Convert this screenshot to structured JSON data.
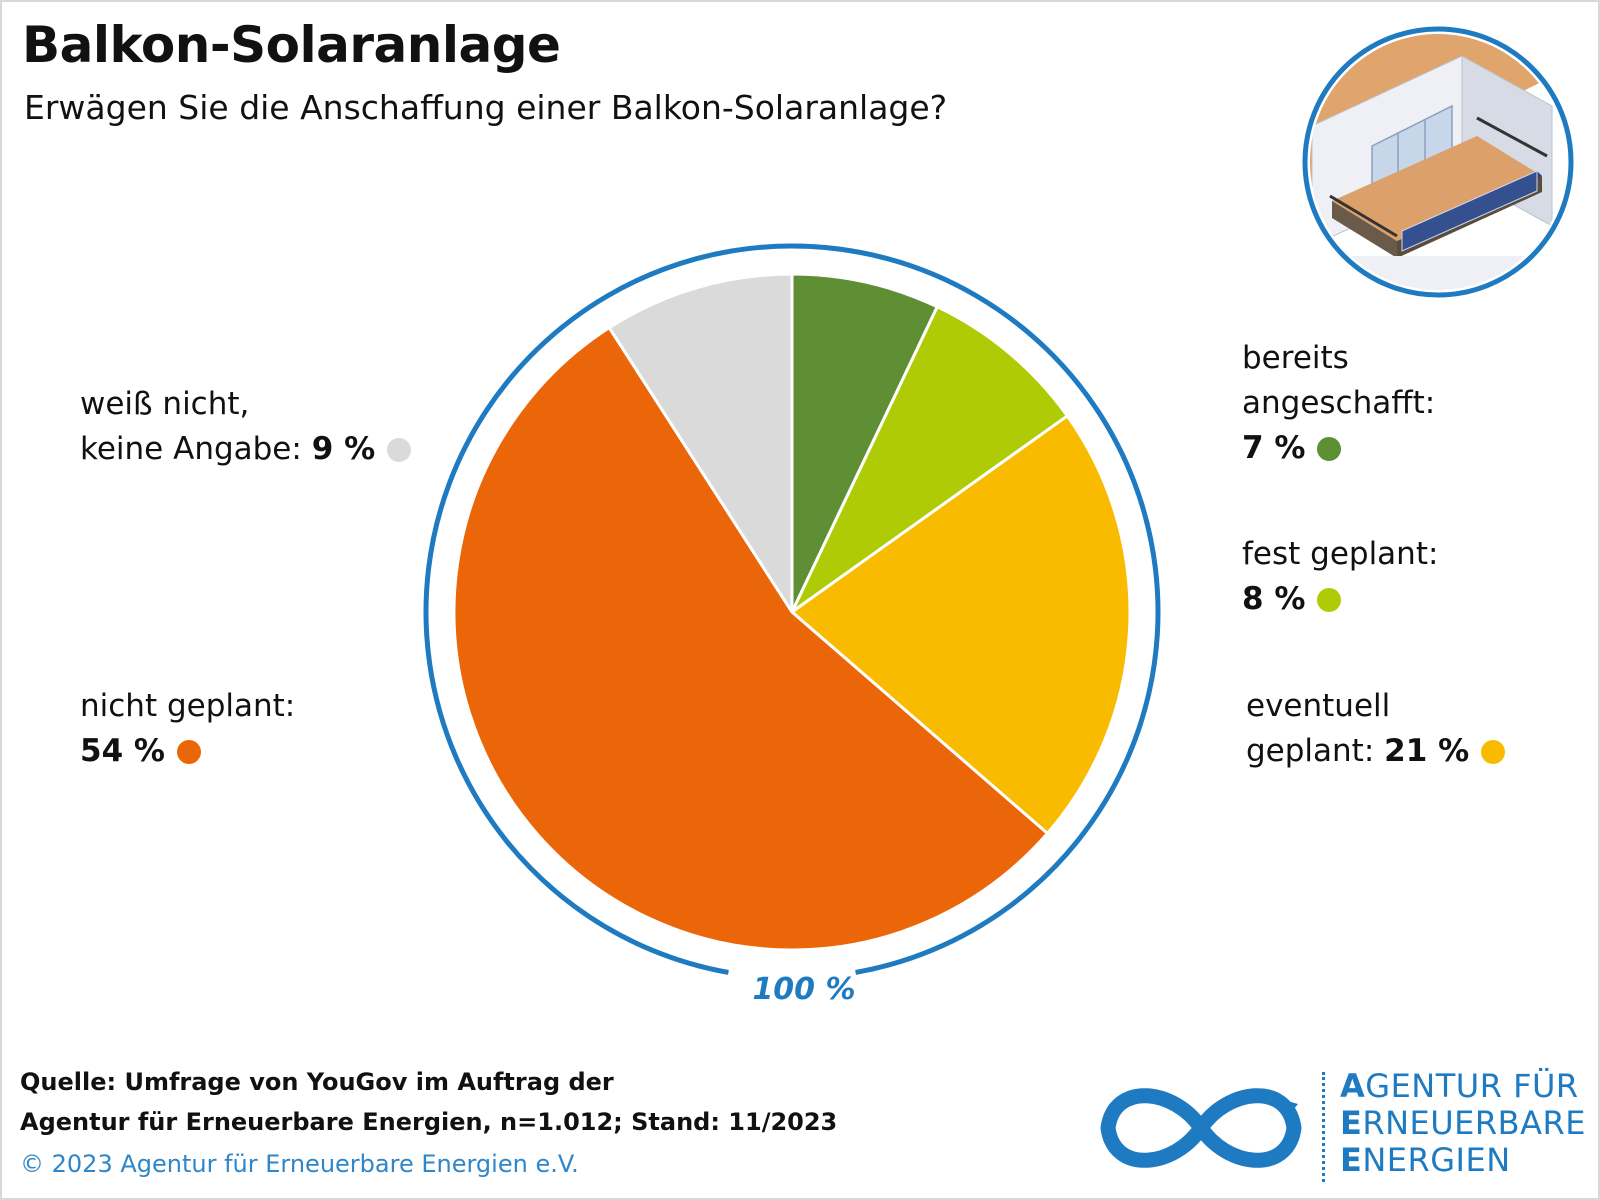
{
  "header": {
    "title": "Balkon-Solaranlage",
    "subtitle": "Erwägen Sie die Anschaffung einer Balkon-Solaranlage?"
  },
  "chart_data": {
    "type": "pie",
    "total_label": "100 %",
    "slices": [
      {
        "label_lines": [
          "bereits",
          "angeschafft:"
        ],
        "value": 7,
        "value_label": "7 %",
        "color": "#5f8f35"
      },
      {
        "label_lines": [
          "fest geplant:"
        ],
        "value": 8,
        "value_label": "8 %",
        "color": "#aecb05"
      },
      {
        "label_lines": [
          "eventuell",
          "geplant:"
        ],
        "value": 21,
        "value_label": "21 %",
        "color": "#f9bb00"
      },
      {
        "label_lines": [
          "nicht geplant:"
        ],
        "value": 54,
        "value_label": "54 %",
        "color": "#eb6608"
      },
      {
        "label_lines": [
          "weiß nicht,",
          "keine Angabe:"
        ],
        "value": 9,
        "value_label": "9 %",
        "color": "#dadada"
      }
    ],
    "ring_color": "#1f7bc1"
  },
  "footer": {
    "source_line1": "Quelle: Umfrage von YouGov im Auftrag der",
    "source_line2": "Agentur für Erneuerbare Energien, n=1.012; Stand: 11/2023",
    "copyright": "© 2023 Agentur für Erneuerbare Energien e.V."
  },
  "logo": {
    "line1_initial": "A",
    "line1_rest": "GENTUR FÜR",
    "line2_initial": "E",
    "line2_rest": "RNEUERBARE",
    "line3_initial": "E",
    "line3_rest": "NERGIEN",
    "icon": "infinity-logo-icon",
    "color": "#1f7bc1"
  },
  "illustration": {
    "icon": "balcony-solar-building-icon"
  }
}
